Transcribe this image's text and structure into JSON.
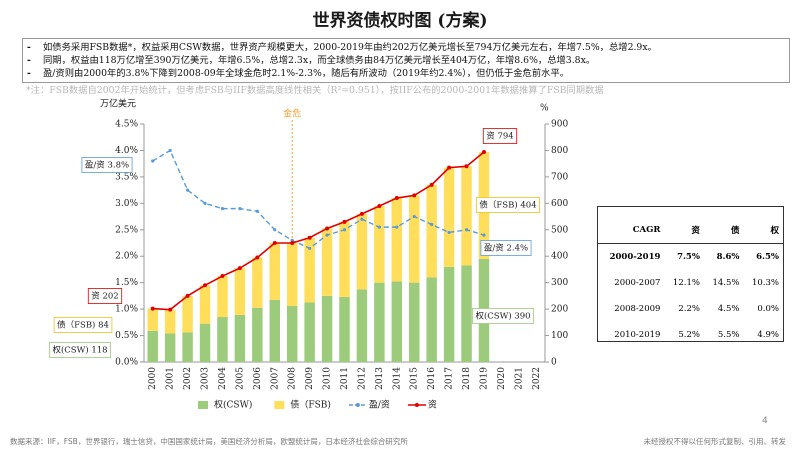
{
  "header": {
    "title": "世界资债权时图 (方案)"
  },
  "bullets": [
    "如债务采用FSB数据*，权益采用CSW数据，世界资产规模更大，2000-2019年由约202万亿美元增长至794万亿美元左右，年增7.5%，总增2.9x。",
    "同期，权益由118万亿增至390万亿美元，年增6.5%，总增2.3x，而全球债务由84万亿美元增长至404万亿，年增8.6%，总增3.8x。",
    "盈/资则由2000年的3.8%下降到2008-09年全球金危时2.1%-2.3%，随后有所波动（2019年约2.4%），但仍低于金危前水平。"
  ],
  "note": "*注：FSB数据自2002年开始统计，但考虑FSB与IIF数据高度线性相关（R²=0.951），按IIF公布的2000-2001年数据推算了FSB同期数据",
  "chart_data": {
    "type": "bar",
    "y_label": "万亿美元",
    "y2_label": "%",
    "categories": [
      "2000",
      "2001",
      "2002",
      "2003",
      "2004",
      "2005",
      "2006",
      "2007",
      "2008",
      "2009",
      "2010",
      "2011",
      "2012",
      "2013",
      "2014",
      "2015",
      "2016",
      "2017",
      "2018",
      "2019",
      "2020",
      "2021",
      "2022"
    ],
    "series": [
      {
        "name": "权(CSW)",
        "type": "bar",
        "axis": "y2",
        "color": "#9ccb7c",
        "values": [
          118,
          108,
          112,
          145,
          170,
          178,
          205,
          235,
          212,
          225,
          250,
          246,
          275,
          300,
          305,
          300,
          320,
          360,
          365,
          390,
          null,
          null,
          null
        ]
      },
      {
        "name": "债（FSB)",
        "type": "bar",
        "axis": "y2",
        "color": "#ffde5c",
        "values": [
          84,
          90,
          138,
          145,
          155,
          177,
          190,
          215,
          238,
          245,
          255,
          284,
          285,
          290,
          315,
          330,
          350,
          375,
          375,
          404,
          null,
          null,
          null
        ]
      },
      {
        "name": "盈/资",
        "type": "line",
        "axis": "y",
        "color": "#5b9bd5",
        "dashed": true,
        "values": [
          3.8,
          4.0,
          3.25,
          3.0,
          2.9,
          2.9,
          2.85,
          2.5,
          2.3,
          2.15,
          2.4,
          2.5,
          2.7,
          2.55,
          2.55,
          2.75,
          2.6,
          2.45,
          2.5,
          2.4,
          null,
          null,
          null
        ]
      },
      {
        "name": "资",
        "type": "line",
        "axis": "y2",
        "color": "#e00000",
        "values": [
          202,
          198,
          250,
          290,
          325,
          355,
          395,
          450,
          450,
          470,
          505,
          530,
          560,
          590,
          620,
          630,
          670,
          735,
          740,
          794,
          null,
          null,
          null
        ]
      }
    ],
    "ylim": [
      0,
      4.5
    ],
    "yticks": [
      {
        "value": 0,
        "label": "0.0%"
      },
      {
        "value": 0.5,
        "label": "0.5%"
      },
      {
        "value": 1,
        "label": "1.0%"
      },
      {
        "value": 1.5,
        "label": "1.5%"
      },
      {
        "value": 2,
        "label": "2.0%"
      },
      {
        "value": 2.5,
        "label": "2.5%"
      },
      {
        "value": 3,
        "label": "3.0%"
      },
      {
        "value": 3.5,
        "label": "3.5%"
      },
      {
        "value": 4,
        "label": "4.0%"
      },
      {
        "value": 4.5,
        "label": "4.5%"
      }
    ],
    "y2lim": [
      0,
      900
    ],
    "y2ticks": [
      0,
      100,
      200,
      300,
      400,
      500,
      600,
      700,
      800,
      900
    ],
    "crisis": {
      "label": "金危",
      "color": "#f0a030"
    },
    "annotations": [
      {
        "text": "盈/资 3.8%",
        "color": "#5b9bd5"
      },
      {
        "text": "资 202",
        "color": "#e00000"
      },
      {
        "text": "债（FSB) 84",
        "color": "#f0c020"
      },
      {
        "text": "权(CSW) 118",
        "color": "#9ccb7c"
      },
      {
        "text": "资 794",
        "color": "#e00000"
      },
      {
        "text": "债（FSB) 404",
        "color": "#f0c020"
      },
      {
        "text": "盈/资 2.4%",
        "color": "#5b9bd5"
      },
      {
        "text": "权(CSW) 390",
        "color": "#9ccb7c"
      }
    ],
    "legend": "bottom"
  },
  "table": {
    "header": [
      "CAGR",
      "资",
      "债",
      "权"
    ],
    "rows": [
      [
        "2000-2019",
        "7.5%",
        "8.6%",
        "6.5%"
      ],
      [
        "2000-2007",
        "12.1%",
        "14.5%",
        "10.3%"
      ],
      [
        "2008-2009",
        "2.2%",
        "4.5%",
        "0.0%"
      ],
      [
        "2010-2019",
        "5.2%",
        "5.5%",
        "4.9%"
      ]
    ]
  },
  "footer": {
    "source": "数据来源：IIF，FSB，世界银行，瑞士信贷，中国国家统计局，美国经济分析局，欧盟统计局，日本经济社会综合研究所",
    "copyright": "未经授权不得以任何形式复制、引用、转发",
    "page": "4"
  }
}
